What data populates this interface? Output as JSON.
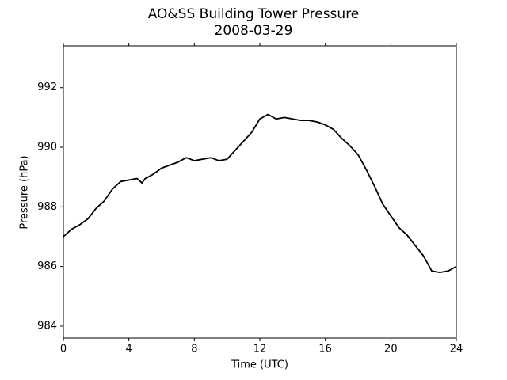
{
  "chart_data": {
    "type": "line",
    "title": "AO&SS Building Tower Pressure",
    "subtitle": "2008-03-29",
    "x_label": "Time (UTC)",
    "y_label": "Pressure (hPa)",
    "x": [
      0,
      0.5,
      1,
      1.5,
      2,
      2.5,
      3,
      3.5,
      4,
      4.5,
      4.8,
      5,
      5.5,
      6,
      6.5,
      7,
      7.5,
      8,
      8.5,
      9,
      9.5,
      10,
      10.5,
      11,
      11.5,
      12,
      12.5,
      13,
      13.5,
      14,
      14.5,
      15,
      15.5,
      16,
      16.5,
      17,
      17.5,
      18,
      18.5,
      19,
      19.5,
      20,
      20.5,
      21,
      21.5,
      22,
      22.5,
      23,
      23.5,
      24
    ],
    "series": [
      {
        "name": "Pressure",
        "color": "#000000",
        "values": [
          987.0,
          987.25,
          987.4,
          987.6,
          987.95,
          988.2,
          988.6,
          988.85,
          988.9,
          988.95,
          988.8,
          988.95,
          989.1,
          989.3,
          989.4,
          989.5,
          989.65,
          989.55,
          989.6,
          989.65,
          989.55,
          989.6,
          989.9,
          990.2,
          990.5,
          990.95,
          991.1,
          990.95,
          991.0,
          990.95,
          990.9,
          990.9,
          990.85,
          990.75,
          990.6,
          990.3,
          990.05,
          989.75,
          989.25,
          988.7,
          988.1,
          987.7,
          987.3,
          987.05,
          986.7,
          986.35,
          985.85,
          985.8,
          985.85,
          986.0
        ]
      }
    ],
    "xlim": [
      0,
      24
    ],
    "xticks": [
      0,
      4,
      8,
      12,
      16,
      20,
      24
    ],
    "ylim": [
      983.6,
      993.4
    ],
    "yticks": [
      984,
      986,
      988,
      990,
      992
    ]
  }
}
